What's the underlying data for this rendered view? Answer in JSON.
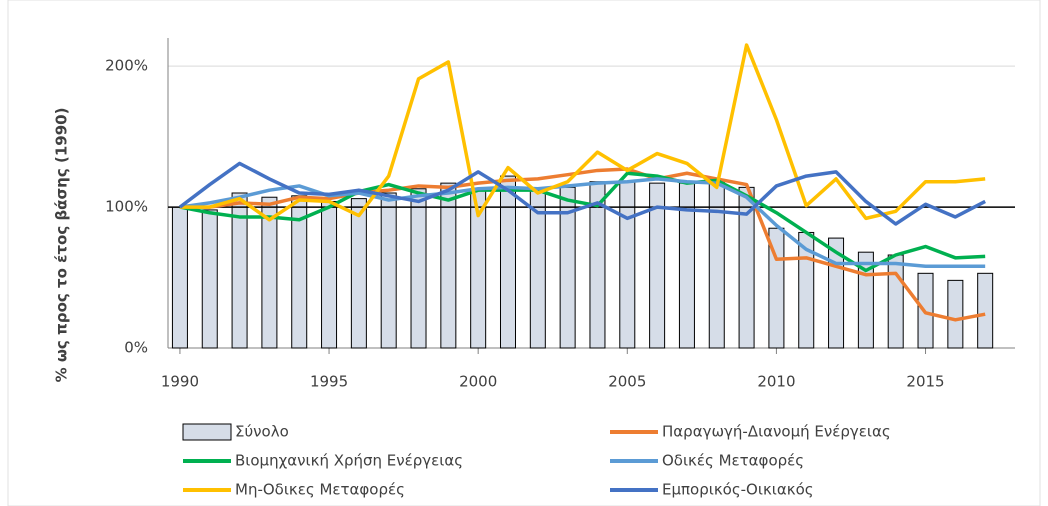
{
  "chart_data": {
    "type": "combo",
    "y_label": "% ως προς το έτος βάσης (1990)",
    "x": [
      1990,
      1991,
      1992,
      1993,
      1994,
      1995,
      1996,
      1997,
      1998,
      1999,
      2000,
      2001,
      2002,
      2003,
      2004,
      2005,
      2006,
      2007,
      2008,
      2009,
      2010,
      2011,
      2012,
      2013,
      2014,
      2015,
      2016,
      2017
    ],
    "xlim": [
      1989.6,
      2018.0
    ],
    "xticks": [
      1990,
      1995,
      2000,
      2005,
      2010,
      2015
    ],
    "ylim": [
      0,
      220
    ],
    "yticks": [
      {
        "value": 0,
        "label": "0%"
      },
      {
        "value": 100,
        "label": "100%"
      },
      {
        "value": 200,
        "label": "200%"
      }
    ],
    "grid": true,
    "reference_line": 100,
    "series": [
      {
        "name": "Σύνολο",
        "type": "bar",
        "color": "#d6dde8",
        "values": [
          100,
          98,
          110,
          107,
          108,
          104,
          106,
          110,
          113,
          117,
          113,
          122,
          113,
          114,
          118,
          118,
          117,
          117,
          118,
          114,
          85,
          82,
          78,
          68,
          66,
          53,
          48,
          53
        ]
      },
      {
        "name": "Παραγωγή-Διανομή  Ενέργειας",
        "type": "line",
        "color": "#ed7d31",
        "values": [
          100,
          100,
          103,
          102,
          107,
          106,
          110,
          112,
          115,
          114,
          117,
          119,
          120,
          123,
          126,
          127,
          120,
          124,
          120,
          116,
          63,
          64,
          58,
          52,
          53,
          25,
          20,
          24
        ]
      },
      {
        "name": "Βιομηχανική Χρήση Ενέργειας",
        "type": "line",
        "color": "#00b050",
        "values": [
          100,
          96,
          93,
          93,
          91,
          100,
          111,
          116,
          110,
          105,
          112,
          112,
          112,
          105,
          101,
          124,
          122,
          117,
          119,
          108,
          96,
          82,
          68,
          55,
          66,
          72,
          64,
          65
        ]
      },
      {
        "name": "Οδικές Μεταφορές",
        "type": "line",
        "color": "#5b9bd5",
        "values": [
          100,
          103,
          107,
          112,
          115,
          108,
          110,
          105,
          108,
          110,
          113,
          114,
          113,
          115,
          117,
          118,
          120,
          118,
          117,
          107,
          87,
          70,
          60,
          60,
          60,
          58,
          58,
          58
        ]
      },
      {
        "name": "Μη-Οδικες Μεταφορές",
        "type": "line",
        "color": "#ffc000",
        "values": [
          100,
          100,
          106,
          91,
          105,
          104,
          94,
          122,
          191,
          203,
          94,
          128,
          110,
          118,
          139,
          126,
          138,
          131,
          114,
          215,
          162,
          101,
          120,
          92,
          97,
          118,
          118,
          120
        ]
      },
      {
        "name": "Εμπορικός-Οικιακός",
        "type": "line",
        "color": "#4472c4",
        "values": [
          100,
          116,
          131,
          120,
          110,
          109,
          112,
          108,
          104,
          112,
          125,
          112,
          96,
          96,
          103,
          92,
          100,
          98,
          97,
          95,
          115,
          122,
          125,
          104,
          88,
          102,
          93,
          104
        ]
      }
    ]
  }
}
